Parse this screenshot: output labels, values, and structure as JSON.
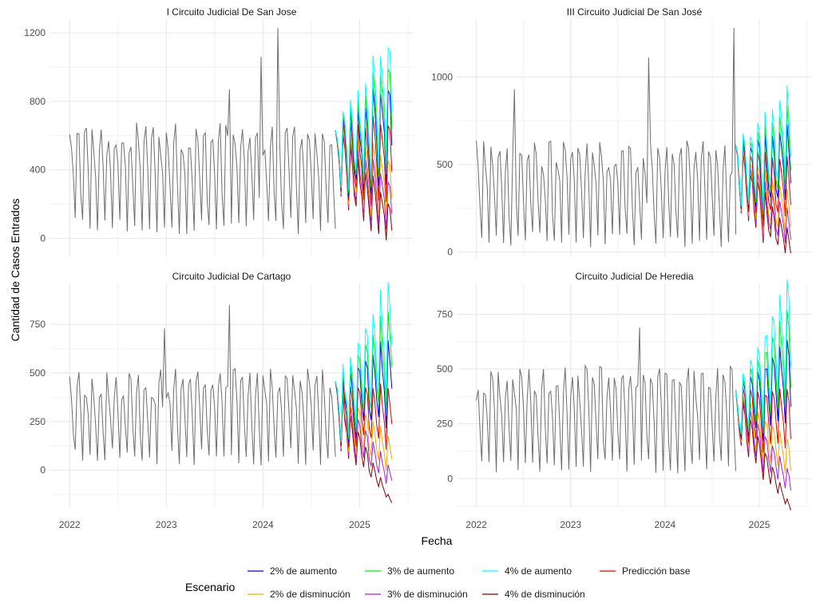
{
  "chart_data": {
    "type": "line",
    "xlabel": "Fecha",
    "ylabel": "Cantidad de Casos Entrados",
    "x_ticks": [
      "2022",
      "2023",
      "2024",
      "2025"
    ],
    "legend": {
      "title": "Escenario",
      "position": "bottom",
      "entries": [
        {
          "name": "2% de aumento",
          "color": "#0000ff"
        },
        {
          "name": "3% de aumento",
          "color": "#00ee00"
        },
        {
          "name": "4% de aumento",
          "color": "#00ffff"
        },
        {
          "name": "Predicción base",
          "color": "#e00000"
        },
        {
          "name": "2% de disminución",
          "color": "#ffa500"
        },
        {
          "name": "3% de disminución",
          "color": "#a020f0"
        },
        {
          "name": "4% de disminución",
          "color": "#8b0000"
        }
      ]
    },
    "grid": true,
    "panels": [
      {
        "title": "I Circuito Judicial De San Jose",
        "ylim": [
          -110,
          1280
        ],
        "y_ticks": [
          0,
          400,
          800,
          1200
        ],
        "history": {
          "x_start": "2022-01",
          "x_end": "2024-10",
          "low": 80,
          "high": 620,
          "peaks": [
            [
              "2023-09",
              870
            ],
            [
              "2024-01",
              1060
            ],
            [
              "2024-03",
              1230
            ]
          ]
        },
        "forecast": {
          "x_start": "2024-10",
          "x_end": "2025-05",
          "base_start": 620,
          "base_end": 650,
          "spread": 460
        }
      },
      {
        "title": "III Circuito Judicial De San José",
        "ylim": [
          -30,
          1330
        ],
        "y_ticks": [
          0,
          500,
          1000
        ],
        "history": {
          "x_start": "2022-01",
          "x_end": "2024-10",
          "low": 80,
          "high": 580,
          "peaks": [
            [
              "2022-06",
              930
            ],
            [
              "2023-11",
              1110
            ],
            [
              "2024-10",
              1280
            ]
          ]
        },
        "forecast": {
          "x_start": "2024-10",
          "x_end": "2025-05",
          "base_start": 560,
          "base_end": 480,
          "spread": 380
        }
      },
      {
        "title": "Circuito Judicial De Cartago",
        "ylim": [
          -190,
          960
        ],
        "y_ticks": [
          0,
          250,
          500,
          750
        ],
        "history": {
          "x_start": "2022-01",
          "x_end": "2024-10",
          "low": 80,
          "high": 480,
          "peaks": [
            [
              "2023-01",
              730
            ],
            [
              "2023-09",
              850
            ]
          ]
        },
        "forecast": {
          "x_start": "2024-10",
          "x_end": "2025-05",
          "base_start": 420,
          "base_end": 380,
          "spread": 520
        }
      },
      {
        "title": "Circuito Judicial De Heredia",
        "ylim": [
          -130,
          890
        ],
        "y_ticks": [
          0,
          250,
          500,
          750
        ],
        "history": {
          "x_start": "2022-01",
          "x_end": "2024-10",
          "low": 60,
          "high": 470,
          "peaks": [
            [
              "2023-10",
              690
            ]
          ]
        },
        "forecast": {
          "x_start": "2024-10",
          "x_end": "2025-05",
          "base_start": 400,
          "base_end": 360,
          "spread": 470
        }
      }
    ]
  }
}
